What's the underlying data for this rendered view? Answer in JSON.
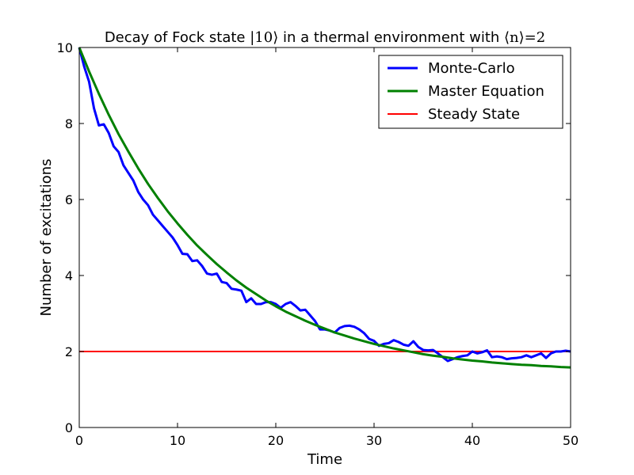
{
  "chart_data": {
    "type": "line",
    "title": {
      "prefix": "Decay of Fock state ",
      "math1": "|10⟩",
      "middle": " in a thermal environment with ",
      "math2": "⟨n⟩=2"
    },
    "xlabel": "Time",
    "ylabel": "Number of excitations",
    "xlim": [
      0,
      50
    ],
    "ylim": [
      0,
      10
    ],
    "xticks": [
      0,
      10,
      20,
      30,
      40,
      50
    ],
    "yticks": [
      0,
      2,
      4,
      6,
      8,
      10
    ],
    "grid": false,
    "legend_position": "top-right",
    "series": [
      {
        "name": "Monte-Carlo",
        "color": "#0000ff",
        "x": [
          0,
          0.5,
          1,
          1.5,
          2,
          2.5,
          3,
          3.5,
          4,
          4.5,
          5,
          5.5,
          6,
          6.5,
          7,
          7.5,
          8,
          8.5,
          9,
          9.5,
          10,
          10.5,
          11,
          11.5,
          12,
          12.5,
          13,
          13.5,
          14,
          14.5,
          15,
          15.5,
          16,
          16.5,
          17,
          17.5,
          18,
          18.5,
          19,
          19.5,
          20,
          20.5,
          21,
          21.5,
          22,
          22.5,
          23,
          23.5,
          24,
          24.5,
          25,
          25.5,
          26,
          26.5,
          27,
          27.5,
          28,
          28.5,
          29,
          29.5,
          30,
          30.5,
          31,
          31.5,
          32,
          32.5,
          33,
          33.5,
          34,
          34.5,
          35,
          35.5,
          36,
          36.5,
          37,
          37.5,
          38,
          38.5,
          39,
          39.5,
          40,
          40.5,
          41,
          41.5,
          42,
          42.5,
          43,
          43.5,
          44,
          44.5,
          45,
          45.5,
          46,
          46.5,
          47,
          47.5,
          48,
          48.5,
          49,
          49.5,
          50
        ],
        "values": [
          10.0,
          9.5,
          9.1,
          8.4,
          7.95,
          7.98,
          7.75,
          7.4,
          7.25,
          6.9,
          6.7,
          6.5,
          6.2,
          6.0,
          5.85,
          5.6,
          5.45,
          5.3,
          5.15,
          5.0,
          4.8,
          4.57,
          4.56,
          4.38,
          4.4,
          4.25,
          4.05,
          4.02,
          4.05,
          3.83,
          3.8,
          3.65,
          3.63,
          3.6,
          3.3,
          3.4,
          3.25,
          3.25,
          3.3,
          3.3,
          3.25,
          3.15,
          3.25,
          3.3,
          3.2,
          3.08,
          3.1,
          2.95,
          2.8,
          2.58,
          2.58,
          2.55,
          2.5,
          2.62,
          2.67,
          2.68,
          2.65,
          2.58,
          2.48,
          2.33,
          2.28,
          2.15,
          2.2,
          2.22,
          2.3,
          2.25,
          2.18,
          2.15,
          2.27,
          2.12,
          2.04,
          2.03,
          2.04,
          1.95,
          1.85,
          1.75,
          1.8,
          1.85,
          1.88,
          1.9,
          2.0,
          1.95,
          1.98,
          2.03,
          1.85,
          1.87,
          1.85,
          1.8,
          1.82,
          1.83,
          1.85,
          1.9,
          1.85,
          1.9,
          1.95,
          1.83,
          1.95,
          2.0,
          2.0,
          2.02,
          2.0
        ]
      },
      {
        "name": "Master Equation",
        "color": "#008000",
        "x": [
          0,
          1,
          2,
          3,
          4,
          5,
          6,
          7,
          8,
          9,
          10,
          11,
          12,
          13,
          14,
          15,
          16,
          17,
          18,
          19,
          20,
          21,
          22,
          23,
          24,
          25,
          26,
          27,
          28,
          29,
          30,
          31,
          32,
          33,
          34,
          35,
          36,
          37,
          38,
          39,
          40,
          41,
          42,
          43,
          44,
          45,
          46,
          47,
          48,
          49,
          50
        ],
        "values": [
          10.0,
          9.37,
          8.78,
          8.23,
          7.72,
          7.26,
          6.82,
          6.41,
          6.04,
          5.69,
          5.37,
          5.07,
          4.79,
          4.54,
          4.3,
          4.08,
          3.87,
          3.68,
          3.51,
          3.34,
          3.19,
          3.05,
          2.93,
          2.81,
          2.7,
          2.6,
          2.5,
          2.42,
          2.34,
          2.27,
          2.2,
          2.14,
          2.08,
          2.03,
          1.98,
          1.93,
          1.89,
          1.86,
          1.82,
          1.79,
          1.76,
          1.74,
          1.71,
          1.69,
          1.67,
          1.65,
          1.64,
          1.62,
          1.61,
          1.59,
          1.58
        ]
      },
      {
        "name": "Steady State",
        "color": "#ff0000",
        "x": [
          0,
          50
        ],
        "values": [
          2,
          2
        ]
      }
    ]
  }
}
